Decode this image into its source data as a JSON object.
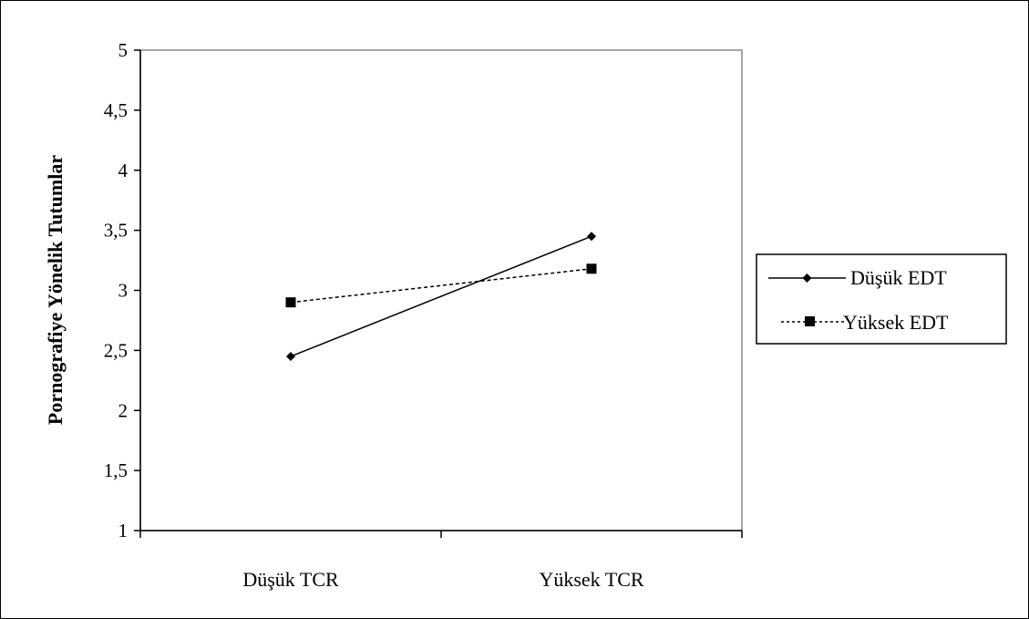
{
  "chart_data": {
    "type": "line",
    "title": "",
    "xlabel": "",
    "ylabel": "Pornografiye  Yönelik  Tutumlar",
    "categories": [
      "Düşük TCR",
      "Yüksek TCR"
    ],
    "ylim": [
      1,
      5
    ],
    "yticks": [
      "1",
      "1,5",
      "2",
      "2,5",
      "3",
      "3,5",
      "4",
      "4,5",
      "5"
    ],
    "grid": false,
    "legend": "right",
    "series": [
      {
        "name": "Düşük EDT",
        "values": [
          2.45,
          3.45
        ],
        "marker": "diamond",
        "line": "solid",
        "color": "#000000"
      },
      {
        "name": "Yüksek EDT",
        "values": [
          2.9,
          3.18
        ],
        "marker": "square",
        "line": "dashed",
        "color": "#000000"
      }
    ]
  }
}
